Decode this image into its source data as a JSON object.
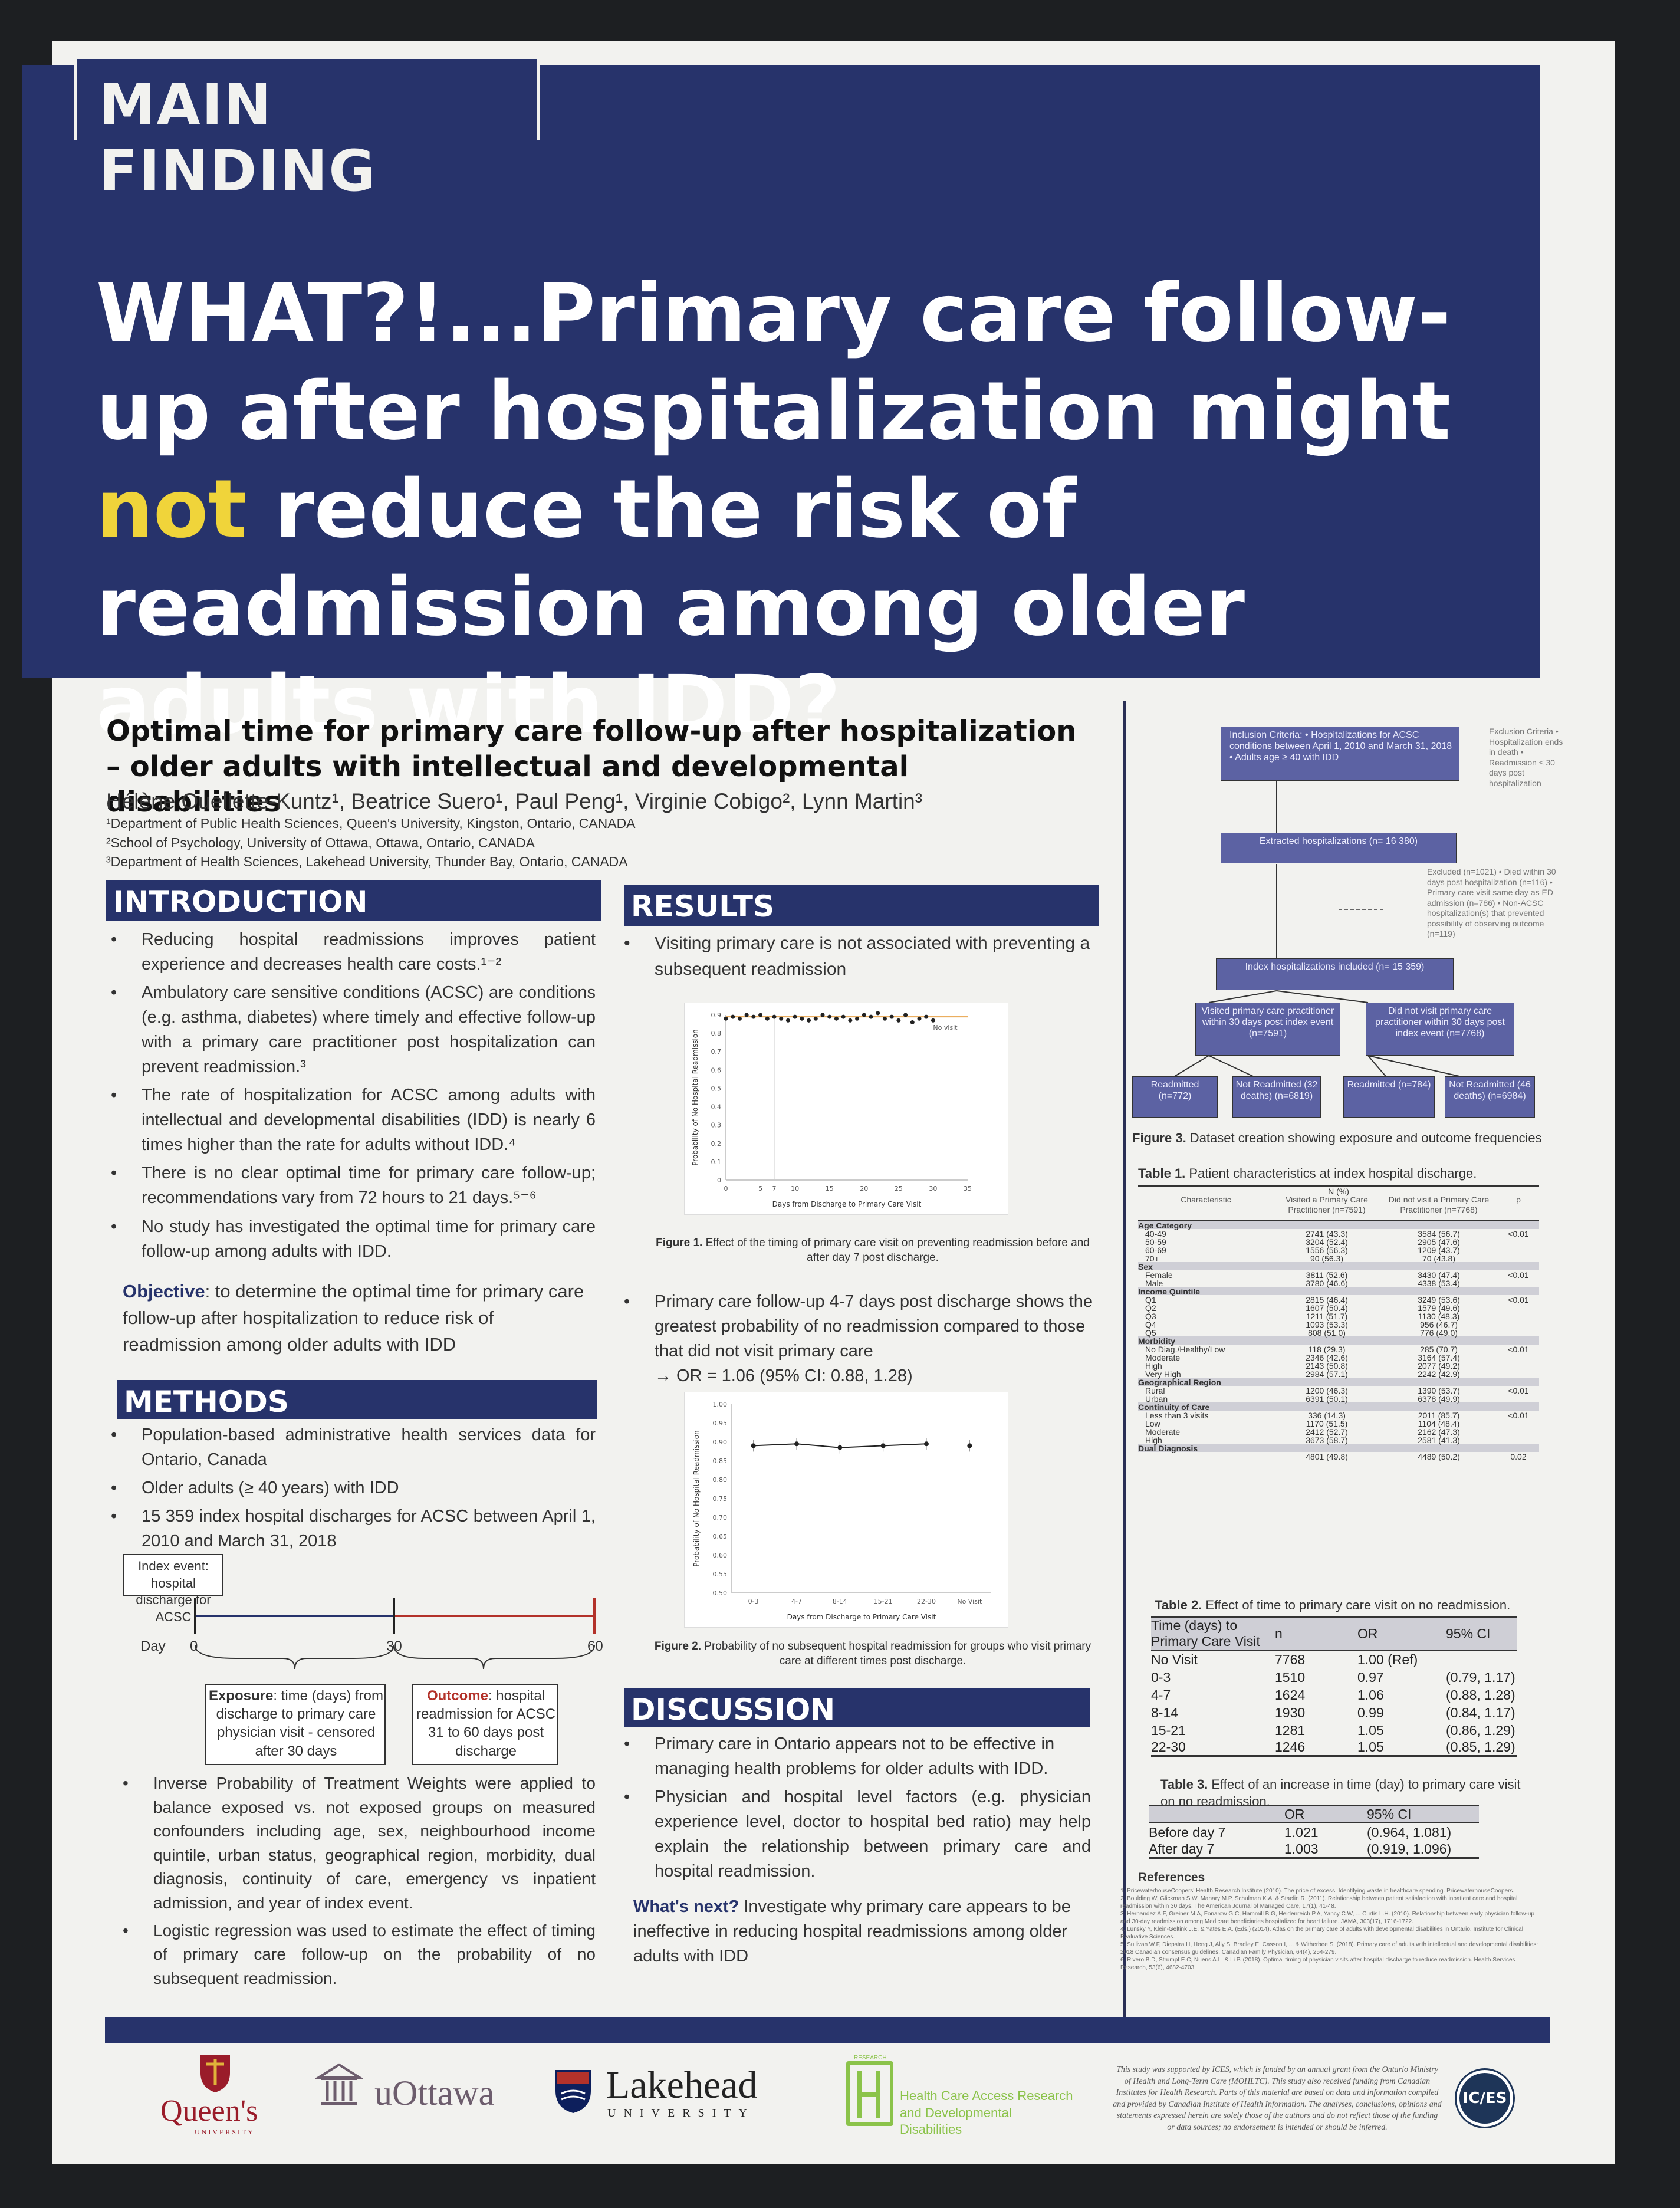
{
  "banner": {
    "tag": "MAIN FINDING",
    "headline_a": "WHAT?!...Primary care follow-up after hospitalization might ",
    "headline_hl": "not",
    "headline_b": " reduce the risk of readmission among older adults with IDD?"
  },
  "paper": {
    "title": "Optimal time for primary care follow-up after hospitalization – older adults with intellectual and developmental disabilities",
    "authors": "Hélène Ouellette-Kuntz¹, Beatrice Suero¹, Paul Peng¹, Virginie Cobigo², Lynn Martin³",
    "affiliations": [
      "¹Department of Public Health Sciences, Queen's University, Kingston, Ontario, CANADA",
      "²School of Psychology, University of Ottawa, Ottawa, Ontario, CANADA",
      "³Department of Health Sciences, Lakehead University, Thunder Bay, Ontario, CANADA"
    ]
  },
  "intro": {
    "head": "INTRODUCTION",
    "bullets": [
      "Reducing hospital readmissions improves patient experience and decreases health care costs.¹⁻²",
      "Ambulatory care sensitive conditions (ACSC) are conditions (e.g. asthma, diabetes) where timely and effective follow-up with a primary care practitioner post hospitalization can prevent readmission.³",
      "The rate of hospitalization for ACSC among adults with intellectual and developmental disabilities (IDD) is nearly 6 times higher than the rate for adults without IDD.⁴",
      "There is no clear optimal time for primary care follow-up; recommendations vary from 72 hours to 21 days.⁵⁻⁶",
      "No study has investigated the optimal time for primary care follow-up among adults with IDD."
    ],
    "obj_label": "Objective",
    "obj_text": ": to determine the optimal time for primary care follow-up after hospitalization to reduce risk of readmission among older adults with IDD"
  },
  "methods": {
    "head": "METHODS",
    "bullets": [
      "Population-based administrative health services data for Ontario, Canada",
      "Older adults (≥ 40 years) with IDD",
      "15 359 index hospital discharges for ACSC between April 1, 2010 and March 31, 2018"
    ],
    "timeline": {
      "index": "Index event: hospital discharge for ACSC",
      "day": "Day",
      "d0": "0",
      "d30": "30",
      "d60": "60",
      "exp_label": "Exposure",
      "exp_text": ": time (days) from discharge to primary care physician visit - censored after 30 days",
      "out_label": "Outcome",
      "out_text": ": hospital readmission for ACSC 31 to 60 days post discharge"
    },
    "bullets2": [
      "Inverse Probability of Treatment Weights were applied to balance exposed vs. not exposed groups on measured confounders including age, sex, neighbourhood income quintile, urban status, geographical region, morbidity, dual diagnosis, continuity of care, emergency vs inpatient admission, and year of index event.",
      "Logistic regression was used to estimate the effect of timing of primary care follow-up on the probability of no subsequent readmission."
    ]
  },
  "results": {
    "head": "RESULTS",
    "b1": "Visiting primary care is not associated with preventing a subsequent readmission",
    "fig1_cap_label": "Figure 1.",
    "fig1_cap": " Effect of the timing of primary care visit on preventing readmission before and after day 7 post discharge.",
    "b2": "Primary care follow-up 4-7 days post discharge shows the greatest probability of no readmission compared to those that did not visit primary care",
    "b2_or": "→ OR = 1.06 (95% CI: 0.88, 1.28)",
    "fig2_cap_label": "Figure 2.",
    "fig2_cap": " Probability of no subsequent hospital readmission for groups who visit primary care at different times post discharge."
  },
  "chart_data": [
    {
      "type": "scatter",
      "xlabel": "Days from Discharge to Primary Care Visit",
      "ylabel": "Probability of No Hospital Readmission",
      "xlim": [
        0,
        35
      ],
      "ylim": [
        0,
        0.9
      ],
      "xticks": [
        "0",
        "5",
        "7",
        "10",
        "15",
        "20",
        "25",
        "30",
        "35"
      ],
      "yticks": [
        "0",
        "0.1",
        "0.2",
        "0.3",
        "0.4",
        "0.5",
        "0.6",
        "0.7",
        "0.8",
        "0.9"
      ],
      "annotation": "No visit",
      "x": [
        0,
        1,
        2,
        3,
        4,
        5,
        6,
        7,
        8,
        9,
        10,
        11,
        12,
        13,
        14,
        15,
        16,
        17,
        18,
        19,
        20,
        21,
        22,
        23,
        24,
        25,
        26,
        27,
        28,
        29,
        30
      ],
      "y": [
        0.88,
        0.89,
        0.88,
        0.9,
        0.89,
        0.9,
        0.88,
        0.89,
        0.88,
        0.87,
        0.89,
        0.88,
        0.87,
        0.88,
        0.9,
        0.89,
        0.88,
        0.89,
        0.87,
        0.88,
        0.9,
        0.89,
        0.91,
        0.88,
        0.89,
        0.87,
        0.9,
        0.86,
        0.88,
        0.89,
        0.87
      ],
      "no_visit": 0.89
    },
    {
      "type": "line",
      "xlabel": "Days from Discharge to Primary Care Visit",
      "ylabel": "Probability of No Hospital Readmission",
      "categories": [
        "0-3",
        "4-7",
        "8-14",
        "15-21",
        "22-30",
        "No Visit"
      ],
      "values": [
        0.89,
        0.895,
        0.885,
        0.89,
        0.895,
        0.89
      ],
      "ylim": [
        0.5,
        1.0
      ],
      "yticks": [
        "0.50",
        "0.55",
        "0.60",
        "0.65",
        "0.70",
        "0.75",
        "0.80",
        "0.85",
        "0.90",
        "0.95",
        "1.00"
      ]
    }
  ],
  "discussion": {
    "head": "DISCUSSION",
    "bullets": [
      "Primary care in Ontario appears not to be effective in managing health problems for older adults with IDD.",
      "Physician and hospital level factors (e.g. physician experience level, doctor to hospital bed ratio) may help explain the relationship between primary care and hospital readmission."
    ],
    "next_label": "What's next?",
    "next_text": " Investigate why primary care appears to be ineffective in reducing hospital readmissions among older adults with IDD"
  },
  "flow": {
    "inclusion": "Inclusion Criteria: • Hospitalizations for ACSC conditions between April 1, 2010 and March 31, 2018 • Adults age ≥ 40 with IDD",
    "exclusion": "Exclusion Criteria • Hospitalization ends in death • Readmission ≤ 30 days post hospitalization",
    "extracted": "Extracted hospitalizations (n= 16 380)",
    "excluded": "Excluded (n=1021) • Died within 30 days post hospitalization (n=116) • Primary care visit same day as ED admission (n=786) • Non-ACSC hospitalization(s) that prevented possibility of observing outcome (n=119)",
    "index": "Index hospitalizations included (n= 15 359)",
    "visited": "Visited primary care practitioner within 30 days post index event (n=7591)",
    "notvisited": "Did not visit primary care practitioner within 30 days post index event (n=7768)",
    "r1": "Readmitted (n=772)",
    "nr1": "Not Readmitted (32 deaths) (n=6819)",
    "r2": "Readmitted (n=784)",
    "nr2": "Not Readmitted (46 deaths) (n=6984)",
    "cap_label": "Figure 3.",
    "cap": " Dataset creation showing exposure and outcome frequencies"
  },
  "table1": {
    "cap_label": "Table 1.",
    "cap": " Patient characteristics at index hospital discharge.",
    "nhead": "N (%)",
    "cols": [
      "Characteristic",
      "Visited a Primary Care Practitioner (n=7591)",
      "Did not visit a Primary Care Practitioner (n=7768)",
      "p"
    ],
    "groups": [
      {
        "name": "Age Category",
        "rows": [
          [
            "40-49",
            "2741 (43.3)",
            "3584 (56.7)",
            "<0.01"
          ],
          [
            "50-59",
            "3204 (52.4)",
            "2905 (47.6)",
            ""
          ],
          [
            "60-69",
            "1556 (56.3)",
            "1209 (43.7)",
            ""
          ],
          [
            "70+",
            "90 (56.3)",
            "70 (43.8)",
            ""
          ]
        ]
      },
      {
        "name": "Sex",
        "rows": [
          [
            "Female",
            "3811 (52.6)",
            "3430 (47.4)",
            "<0.01"
          ],
          [
            "Male",
            "3780 (46.6)",
            "4338 (53.4)",
            ""
          ]
        ]
      },
      {
        "name": "Income Quintile",
        "rows": [
          [
            "Q1",
            "2815 (46.4)",
            "3249 (53.6)",
            "<0.01"
          ],
          [
            "Q2",
            "1607 (50.4)",
            "1579 (49.6)",
            ""
          ],
          [
            "Q3",
            "1211 (51.7)",
            "1130 (48.3)",
            ""
          ],
          [
            "Q4",
            "1093 (53.3)",
            "956 (46.7)",
            ""
          ],
          [
            "Q5",
            "808 (51.0)",
            "776 (49.0)",
            ""
          ]
        ]
      },
      {
        "name": "Morbidity",
        "rows": [
          [
            "No Diag./Healthy/Low",
            "118 (29.3)",
            "285 (70.7)",
            "<0.01"
          ],
          [
            "Moderate",
            "2346 (42.6)",
            "3164 (57.4)",
            ""
          ],
          [
            "High",
            "2143 (50.8)",
            "2077 (49.2)",
            ""
          ],
          [
            "Very High",
            "2984 (57.1)",
            "2242 (42.9)",
            ""
          ]
        ]
      },
      {
        "name": "Geographical Region",
        "rows": [
          [
            "Rural",
            "1200 (46.3)",
            "1390 (53.7)",
            "<0.01"
          ],
          [
            "Urban",
            "6391 (50.1)",
            "6378 (49.9)",
            ""
          ]
        ]
      },
      {
        "name": "Continuity of Care",
        "rows": [
          [
            "Less than 3 visits",
            "336 (14.3)",
            "2011 (85.7)",
            "<0.01"
          ],
          [
            "Low",
            "1170 (51.5)",
            "1104 (48.4)",
            ""
          ],
          [
            "Moderate",
            "2412 (52.7)",
            "2162 (47.3)",
            ""
          ],
          [
            "High",
            "3673 (58.7)",
            "2581 (41.3)",
            ""
          ]
        ]
      },
      {
        "name": "Dual Diagnosis",
        "rows": [
          [
            "",
            "4801 (49.8)",
            "4489 (50.2)",
            "0.02"
          ]
        ]
      }
    ]
  },
  "table2": {
    "cap_label": "Table 2.",
    "cap": " Effect of time to primary care visit on no readmission.",
    "cols": [
      "Time (days) to Primary Care Visit",
      "n",
      "OR",
      "95% CI"
    ],
    "rows": [
      [
        "No Visit",
        "7768",
        "1.00 (Ref)",
        ""
      ],
      [
        "0-3",
        "1510",
        "0.97",
        "(0.79, 1.17)"
      ],
      [
        "4-7",
        "1624",
        "1.06",
        "(0.88, 1.28)"
      ],
      [
        "8-14",
        "1930",
        "0.99",
        "(0.84, 1.17)"
      ],
      [
        "15-21",
        "1281",
        "1.05",
        "(0.86, 1.29)"
      ],
      [
        "22-30",
        "1246",
        "1.05",
        "(0.85, 1.29)"
      ]
    ]
  },
  "table3": {
    "cap_label": "Table 3.",
    "cap": " Effect of an increase in time (day) to primary care visit on no readmission.",
    "cols": [
      "",
      "OR",
      "95% CI"
    ],
    "rows": [
      [
        "Before day 7",
        "1.021",
        "(0.964, 1.081)"
      ],
      [
        "After day 7",
        "1.003",
        "(0.919, 1.096)"
      ]
    ]
  },
  "refs": {
    "head": "References",
    "items": [
      "1. PricewaterhouseCoopers' Health Research Institute (2010). The price of excess: Identifying waste in healthcare spending. PricewaterhouseCoopers.",
      "2. Boulding W, Glickman S.W, Manary M.P, Schulman K.A, & Staelin R. (2011). Relationship between patient satisfaction with inpatient care and hospital readmission within 30 days. The American Journal of Managed Care, 17(1), 41-48.",
      "3. Hernandez A.F, Greiner M.A, Fonarow G.C, Hammill B.G, Heidenreich P.A, Yancy C.W, ... Curtis L.H. (2010). Relationship between early physician follow-up and 30-day readmission among Medicare beneficiaries hospitalized for heart failure. JAMA, 303(17), 1716-1722.",
      "4. Lunsky Y, Klein-Geltink J.E, & Yates E.A. (Eds.) (2014). Atlas on the primary care of adults with developmental disabilities in Ontario. Institute for Clinical Evaluative Sciences.",
      "5. Sullivan W.F, Diepstra H, Heng J, Ally S, Bradley E, Casson I, ... & Witherbee S. (2018). Primary care of adults with intellectual and developmental disabilities: 2018 Canadian consensus guidelines. Canadian Family Physician, 64(4), 254-279.",
      "6. Rivero B.D, Strumpf E.C, Nuens A.L, & Li P. (2018). Optimal timing of physician visits after hospital discharge to reduce readmission. Health Services Research, 53(6), 4682-4703."
    ]
  },
  "footer": {
    "queens": "Queen's",
    "queens_sub": "UNIVERSITY",
    "uottawa": "uOttawa",
    "lakehead": "Lakehead",
    "lakehead_sub": "UNIVERSITY",
    "hcar": "Health Care Access Research and Developmental Disabilities",
    "hcar_small": "RESEARCH",
    "funding": "This study was supported by ICES, which is funded by an annual grant from the Ontario Ministry of Health and Long-Term Care (MOHLTC). This study also received funding from Canadian Institutes for Health Research. Parts of this material are based on data and information compiled and provided by Canadian Institute of Health Information. The analyses, conclusions, opinions and statements expressed herein are solely those of the authors and do not reflect those of the funding or data sources; no endorsement is intended or should be inferred.",
    "ices": "IC/ES"
  },
  "colors": {
    "navy": "#27336b",
    "highlight": "#f0d43a",
    "flowbox": "#5c62a3",
    "red": "#b3322a"
  }
}
